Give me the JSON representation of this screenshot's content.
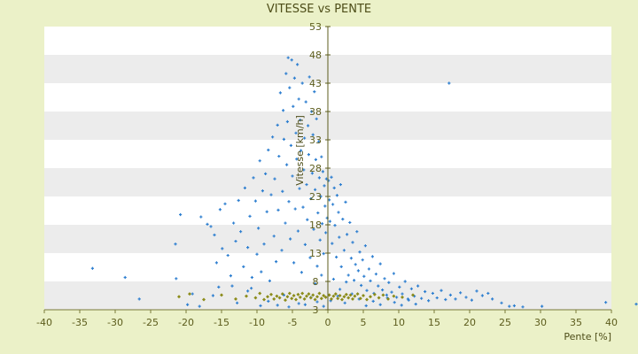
{
  "chart_data": {
    "type": "scatter",
    "title": "VITESSE vs PENTE",
    "xlabel": "Pente [%]",
    "ylabel": "Vitesse [km/h]",
    "xlim": [
      -40,
      40
    ],
    "ylim": [
      3,
      53
    ],
    "x_ticks": [
      -40,
      -35,
      -30,
      -25,
      -20,
      -15,
      -10,
      -5,
      0,
      5,
      10,
      15,
      20,
      25,
      30,
      35,
      40
    ],
    "y_ticks": [
      3,
      8,
      13,
      18,
      23,
      28,
      33,
      38,
      43,
      48,
      53
    ],
    "grid": "horizontal bands",
    "legend": "none",
    "colors": {
      "series_1": "#2e7fd0",
      "series_2": "#8c8c1a",
      "band": "#ececec",
      "plot_bg": "#ffffff",
      "axis": "#7a7a3a"
    },
    "series": [
      {
        "points": [
          [
            -33.2,
            10.3
          ],
          [
            -28.6,
            8.7
          ],
          [
            -26.6,
            4.9
          ],
          [
            -21.4,
            8.5
          ],
          [
            -21.5,
            14.6
          ],
          [
            -20.8,
            19.8
          ],
          [
            -19.8,
            3.9
          ],
          [
            -18.1,
            3.6
          ],
          [
            -17.9,
            19.4
          ],
          [
            -17.0,
            18.1
          ],
          [
            -16.5,
            17.7
          ],
          [
            -16.0,
            16.2
          ],
          [
            -15.7,
            11.3
          ],
          [
            -15.4,
            7.0
          ],
          [
            -15.2,
            20.7
          ],
          [
            -14.9,
            13.8
          ],
          [
            -14.5,
            21.7
          ],
          [
            -14.1,
            12.6
          ],
          [
            -13.7,
            9.0
          ],
          [
            -13.3,
            18.3
          ],
          [
            -13.0,
            15.1
          ],
          [
            -12.6,
            22.3
          ],
          [
            -12.3,
            16.8
          ],
          [
            -11.9,
            10.6
          ],
          [
            -11.7,
            24.5
          ],
          [
            -11.3,
            14.0
          ],
          [
            -11.0,
            19.5
          ],
          [
            -10.8,
            6.8
          ],
          [
            -10.5,
            26.3
          ],
          [
            -10.2,
            22.2
          ],
          [
            -10.0,
            12.8
          ],
          [
            -9.8,
            17.4
          ],
          [
            -9.6,
            29.3
          ],
          [
            -9.4,
            9.7
          ],
          [
            -9.2,
            24.0
          ],
          [
            -9.0,
            14.6
          ],
          [
            -8.8,
            27.0
          ],
          [
            -8.6,
            20.3
          ],
          [
            -8.4,
            31.2
          ],
          [
            -8.2,
            8.1
          ],
          [
            -8.0,
            23.3
          ],
          [
            -7.8,
            33.5
          ],
          [
            -7.6,
            16.0
          ],
          [
            -7.5,
            26.1
          ],
          [
            -7.3,
            11.5
          ],
          [
            -7.1,
            35.6
          ],
          [
            -7.0,
            20.6
          ],
          [
            -6.9,
            30.1
          ],
          [
            -6.7,
            41.3
          ],
          [
            -6.5,
            13.5
          ],
          [
            -6.4,
            23.9
          ],
          [
            -6.3,
            38.2
          ],
          [
            -6.2,
            33.1
          ],
          [
            -6.0,
            18.3
          ],
          [
            -5.9,
            44.7
          ],
          [
            -5.8,
            28.6
          ],
          [
            -5.7,
            36.2
          ],
          [
            -5.6,
            47.5
          ],
          [
            -5.5,
            22.1
          ],
          [
            -5.4,
            42.2
          ],
          [
            -5.3,
            15.5
          ],
          [
            -5.2,
            32.0
          ],
          [
            -5.1,
            47.1
          ],
          [
            -5.0,
            26.6
          ],
          [
            -4.9,
            38.9
          ],
          [
            -4.8,
            11.3
          ],
          [
            -4.7,
            43.9
          ],
          [
            -4.6,
            20.8
          ],
          [
            -4.5,
            34.2
          ],
          [
            -4.4,
            29.6
          ],
          [
            -4.3,
            46.3
          ],
          [
            -4.2,
            16.9
          ],
          [
            -4.1,
            40.2
          ],
          [
            -4.0,
            24.4
          ],
          [
            -3.9,
            36.5
          ],
          [
            -3.8,
            31.1
          ],
          [
            -3.7,
            9.6
          ],
          [
            -3.6,
            43.0
          ],
          [
            -3.5,
            21.1
          ],
          [
            -3.4,
            27.7
          ],
          [
            -3.3,
            33.3
          ],
          [
            -3.2,
            14.5
          ],
          [
            -3.1,
            39.7
          ],
          [
            -3.0,
            25.1
          ],
          [
            -2.9,
            18.9
          ],
          [
            -2.8,
            35.5
          ],
          [
            -2.7,
            30.4
          ],
          [
            -2.6,
            44.1
          ],
          [
            -2.5,
            12.2
          ],
          [
            -2.4,
            22.6
          ],
          [
            -2.3,
            38.0
          ],
          [
            -2.2,
            27.1
          ],
          [
            -2.1,
            33.9
          ],
          [
            -2.0,
            17.2
          ],
          [
            -1.9,
            41.5
          ],
          [
            -1.8,
            24.2
          ],
          [
            -1.7,
            29.5
          ],
          [
            -1.6,
            36.7
          ],
          [
            -1.5,
            10.7
          ],
          [
            -1.4,
            20.1
          ],
          [
            -1.3,
            32.7
          ],
          [
            -1.2,
            26.3
          ],
          [
            -1.1,
            15.3
          ],
          [
            -1.0,
            23.0
          ],
          [
            -0.9,
            30.0
          ],
          [
            -0.8,
            18.2
          ],
          [
            -0.7,
            27.4
          ],
          [
            -0.6,
            12.9
          ],
          [
            -0.5,
            24.9
          ],
          [
            -0.4,
            21.3
          ],
          [
            -0.3,
            16.6
          ],
          [
            -0.2,
            26.1
          ],
          [
            -0.1,
            19.2
          ],
          [
            0.1,
            25.8
          ],
          [
            0.2,
            22.4
          ],
          [
            0.3,
            18.6
          ],
          [
            0.5,
            26.4
          ],
          [
            0.6,
            14.7
          ],
          [
            0.7,
            21.6
          ],
          [
            0.9,
            24.5
          ],
          [
            1.0,
            17.9
          ],
          [
            1.2,
            12.3
          ],
          [
            1.3,
            23.2
          ],
          [
            1.5,
            20.2
          ],
          [
            1.6,
            15.8
          ],
          [
            1.8,
            25.1
          ],
          [
            1.9,
            10.6
          ],
          [
            2.1,
            19.0
          ],
          [
            2.3,
            13.5
          ],
          [
            2.5,
            22.0
          ],
          [
            2.7,
            16.3
          ],
          [
            2.9,
            9.1
          ],
          [
            3.1,
            18.4
          ],
          [
            3.3,
            12.1
          ],
          [
            3.5,
            14.9
          ],
          [
            3.7,
            8.2
          ],
          [
            3.9,
            11.0
          ],
          [
            4.1,
            16.8
          ],
          [
            4.3,
            9.9
          ],
          [
            4.5,
            13.2
          ],
          [
            4.7,
            7.3
          ],
          [
            4.9,
            11.8
          ],
          [
            5.1,
            8.9
          ],
          [
            5.3,
            14.3
          ],
          [
            5.5,
            6.4
          ],
          [
            5.8,
            10.2
          ],
          [
            6.0,
            8.1
          ],
          [
            6.3,
            12.4
          ],
          [
            6.5,
            5.9
          ],
          [
            6.8,
            9.3
          ],
          [
            7.1,
            7.2
          ],
          [
            7.4,
            11.1
          ],
          [
            7.7,
            6.5
          ],
          [
            8.0,
            8.5
          ],
          [
            8.3,
            5.6
          ],
          [
            8.6,
            7.8
          ],
          [
            9.0,
            6.1
          ],
          [
            9.3,
            9.4
          ],
          [
            9.7,
            5.2
          ],
          [
            10.1,
            7.0
          ],
          [
            10.5,
            5.8
          ],
          [
            10.9,
            8.0
          ],
          [
            11.3,
            4.9
          ],
          [
            11.8,
            6.7
          ],
          [
            12.2,
            5.4
          ],
          [
            12.7,
            7.2
          ],
          [
            13.2,
            5.0
          ],
          [
            13.7,
            6.2
          ],
          [
            14.2,
            4.6
          ],
          [
            14.8,
            5.9
          ],
          [
            15.4,
            5.1
          ],
          [
            16.0,
            6.4
          ],
          [
            16.6,
            4.8
          ],
          [
            17.1,
            43.0
          ],
          [
            17.3,
            5.6
          ],
          [
            18.0,
            4.9
          ],
          [
            18.7,
            6.0
          ],
          [
            19.5,
            5.2
          ],
          [
            20.3,
            4.7
          ],
          [
            21.0,
            6.3
          ],
          [
            21.8,
            5.5
          ],
          [
            22.6,
            5.9
          ],
          [
            23.2,
            4.9
          ],
          [
            24.5,
            4.2
          ],
          [
            25.6,
            3.6
          ],
          [
            26.3,
            3.7
          ],
          [
            27.5,
            3.5
          ],
          [
            30.2,
            3.6
          ],
          [
            39.2,
            4.3
          ],
          [
            43.5,
            4.0
          ],
          [
            -12.8,
            4.2
          ],
          [
            -9.5,
            3.7
          ],
          [
            -8.4,
            4.5
          ],
          [
            -7.1,
            3.8
          ],
          [
            -6.2,
            5.6
          ],
          [
            -5.5,
            3.5
          ],
          [
            -4.1,
            4.1
          ],
          [
            -3.2,
            3.9
          ],
          [
            -2.4,
            5.2
          ],
          [
            -1.5,
            4.4
          ],
          [
            -0.6,
            3.6
          ],
          [
            0.4,
            4.6
          ],
          [
            1.4,
            5.4
          ],
          [
            2.4,
            4.2
          ],
          [
            3.4,
            5.8
          ],
          [
            4.4,
            4.9
          ],
          [
            5.4,
            3.7
          ],
          [
            6.4,
            4.5
          ],
          [
            7.4,
            3.9
          ],
          [
            8.4,
            5.1
          ],
          [
            9.4,
            4.3
          ],
          [
            10.4,
            3.8
          ],
          [
            11.4,
            4.7
          ],
          [
            12.4,
            4.0
          ],
          [
            -11.3,
            6.3
          ],
          [
            -10.7,
            8.7
          ],
          [
            -1.8,
            7.6
          ],
          [
            -0.9,
            9.1
          ],
          [
            0.8,
            8.4
          ],
          [
            1.7,
            6.6
          ],
          [
            2.6,
            7.9
          ],
          [
            -13.5,
            7.2
          ],
          [
            -16.2,
            5.5
          ],
          [
            -19.1,
            5.8
          ]
        ]
      },
      {
        "points": [
          [
            -21.0,
            5.3
          ],
          [
            -19.5,
            5.8
          ],
          [
            -17.5,
            4.8
          ],
          [
            -15.0,
            5.6
          ],
          [
            -13.0,
            4.9
          ],
          [
            -11.5,
            5.4
          ],
          [
            -10.2,
            5.1
          ],
          [
            -9.6,
            5.9
          ],
          [
            -9.0,
            4.8
          ],
          [
            -8.5,
            5.3
          ],
          [
            -8.0,
            5.7
          ],
          [
            -7.6,
            4.9
          ],
          [
            -7.2,
            5.4
          ],
          [
            -6.8,
            5.1
          ],
          [
            -6.4,
            5.8
          ],
          [
            -6.0,
            4.7
          ],
          [
            -5.7,
            5.3
          ],
          [
            -5.4,
            5.9
          ],
          [
            -5.1,
            5.0
          ],
          [
            -4.8,
            5.5
          ],
          [
            -4.5,
            4.8
          ],
          [
            -4.2,
            5.7
          ],
          [
            -3.9,
            5.2
          ],
          [
            -3.6,
            5.9
          ],
          [
            -3.3,
            4.9
          ],
          [
            -3.0,
            5.4
          ],
          [
            -2.7,
            5.8
          ],
          [
            -2.4,
            5.1
          ],
          [
            -2.1,
            5.6
          ],
          [
            -1.8,
            4.8
          ],
          [
            -1.5,
            5.3
          ],
          [
            -1.2,
            5.9
          ],
          [
            -0.9,
            5.0
          ],
          [
            -0.6,
            5.5
          ],
          [
            -0.3,
            5.2
          ],
          [
            0.2,
            5.6
          ],
          [
            0.5,
            4.9
          ],
          [
            0.8,
            5.4
          ],
          [
            1.1,
            5.8
          ],
          [
            1.4,
            5.0
          ],
          [
            1.7,
            5.5
          ],
          [
            2.0,
            4.8
          ],
          [
            2.3,
            5.3
          ],
          [
            2.6,
            5.7
          ],
          [
            2.9,
            5.1
          ],
          [
            3.2,
            5.6
          ],
          [
            3.5,
            4.9
          ],
          [
            3.8,
            5.4
          ],
          [
            4.2,
            5.8
          ],
          [
            4.6,
            5.0
          ],
          [
            5.0,
            5.5
          ],
          [
            5.5,
            4.8
          ],
          [
            6.0,
            5.3
          ],
          [
            6.6,
            5.7
          ],
          [
            7.2,
            5.1
          ],
          [
            7.8,
            5.6
          ],
          [
            8.5,
            4.9
          ],
          [
            9.3,
            5.4
          ],
          [
            10.5,
            5.2
          ],
          [
            12.0,
            5.6
          ]
        ]
      }
    ]
  }
}
